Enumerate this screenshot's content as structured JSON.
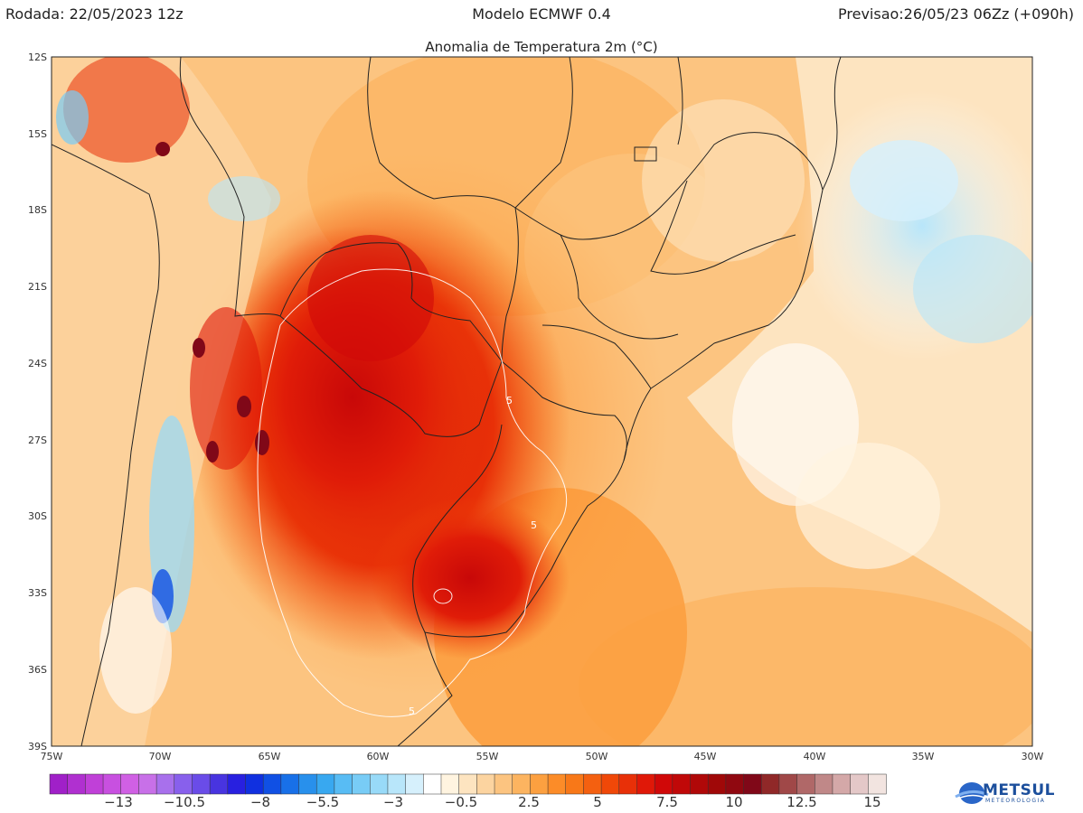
{
  "header": {
    "run": "Rodada: 22/05/2023 12z",
    "model": "Modelo ECMWF 0.4",
    "forecast": "Previsao:26/05/23 06Zz (+090h)"
  },
  "map_title": "Anomalia de Temperatura 2m (°C)",
  "lat_ticks": [
    "12S",
    "15S",
    "18S",
    "21S",
    "24S",
    "27S",
    "30S",
    "33S",
    "36S",
    "39S"
  ],
  "lon_ticks": [
    "75W",
    "70W",
    "65W",
    "60W",
    "55W",
    "50W",
    "45W",
    "40W",
    "35W",
    "30W"
  ],
  "contour_labels": [
    "5",
    "5",
    "5"
  ],
  "colorbar": {
    "labels": [
      "−13",
      "−10.5",
      "−8",
      "−5.5",
      "−3",
      "−0.5",
      "2.5",
      "5",
      "7.5",
      "10",
      "12.5",
      "15"
    ],
    "colors": [
      "#a020c8",
      "#b030d0",
      "#c040d8",
      "#c850e0",
      "#d060e4",
      "#c870e8",
      "#a870ec",
      "#8860ec",
      "#6a4ce8",
      "#4834e0",
      "#2820e0",
      "#1030e0",
      "#1050e4",
      "#1870e8",
      "#2890ec",
      "#38a8f0",
      "#58bcf4",
      "#78ccf6",
      "#98daf8",
      "#b8e6fa",
      "#d6f0fc",
      "#ffffff",
      "#fff4e0",
      "#fde4c0",
      "#fcd4a0",
      "#fcc480",
      "#fcb460",
      "#fca040",
      "#fc8c28",
      "#f87818",
      "#f46010",
      "#f04808",
      "#e83008",
      "#e01808",
      "#d00808",
      "#c00808",
      "#b00808",
      "#a00808",
      "#900810",
      "#800818",
      "#902828",
      "#a04848",
      "#b06868",
      "#c08888",
      "#d4a8a8",
      "#e4c8c8",
      "#f2e4e0"
    ],
    "colors_note": ""
  },
  "logo": {
    "name": "METSUL",
    "sub": "METEOROLOGIA"
  }
}
